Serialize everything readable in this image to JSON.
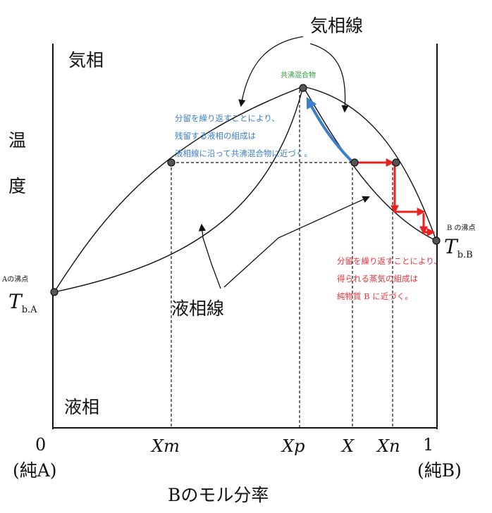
{
  "labels": {
    "vapor_line": "気相線",
    "vapor_phase": "気相",
    "temperature_1": "温",
    "temperature_2": "度",
    "azeotrope": "共沸混合物",
    "a_boiling_point": "Aの沸点",
    "b_boiling_point": "B の沸点",
    "t_symbol": "T",
    "tba_sub": "b.A",
    "tbb_sub": "b.B",
    "liquid_line": "液相線",
    "liquid_phase": "液相",
    "x_axis_title": "Bのモル分率",
    "x_left_end": "0",
    "x_right_end": "1",
    "pure_a": "(純A)",
    "pure_b": "(純B)",
    "tick_xm": "Xm",
    "tick_xp": "Xp",
    "tick_x": "X",
    "tick_xn": "Xn"
  },
  "annotations": {
    "blue": [
      "分留を繰り返すことにより、",
      "残留する液相の組成は",
      "液相線に沿って共沸混合物に近づく。"
    ],
    "red": [
      "分留を繰り返すことにより、",
      "得られる蒸気の組成は",
      "純物質 B に近づく。"
    ]
  },
  "colors": {
    "line": "#111111",
    "blue_arrow": "#3d7ecb",
    "red_steps": "#e8231f",
    "blue_text": "#3d7ecb",
    "red_text": "#e8323a",
    "green_text": "#2e9a3a"
  }
}
